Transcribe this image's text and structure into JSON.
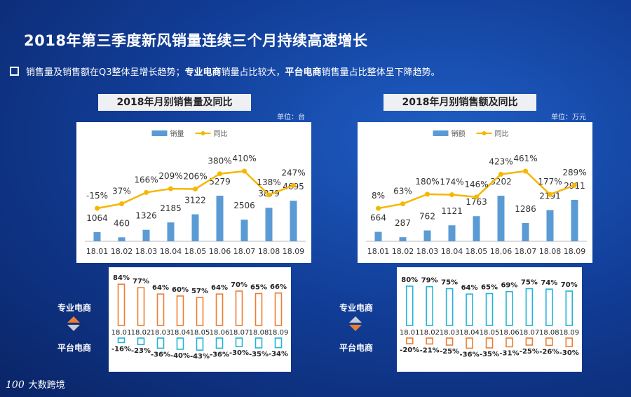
{
  "title": "2018年第三季度新风销量连续三个月持续高速增长",
  "subtitle": {
    "part1": "销售量及销售额在Q3整体呈增长趋势；",
    "bold1": "专业电商",
    "part2": "销量占比较大，",
    "bold2": "平台电商",
    "part3": "销售量占比整体呈下降趋势。"
  },
  "left_panel": {
    "header": "2018年月别销售量及同比",
    "unit": "单位：台"
  },
  "right_panel": {
    "header": "2018年月别销售额及同比",
    "unit": "单位：万元"
  },
  "side_labels": {
    "pro": "专业电商",
    "platform": "平台电商"
  },
  "logo": {
    "mark": "100",
    "text": "大数跨境"
  },
  "colors": {
    "bar": "#5b9bd5",
    "line": "#f5b700",
    "orange": "#ed7d31",
    "cyan": "#22b3d6"
  },
  "chart_data": [
    {
      "type": "bar+line",
      "categories": [
        "18.01",
        "18.02",
        "18.03",
        "18.04",
        "18.05",
        "18.06",
        "18.07",
        "18.08",
        "18.09"
      ],
      "series": [
        {
          "name": "销量",
          "values": [
            1064,
            460,
            1326,
            2185,
            3122,
            5279,
            2506,
            3879,
            4695
          ]
        },
        {
          "name": "同比",
          "values": [
            -15,
            37,
            166,
            209,
            206,
            380,
            410,
            138,
            247
          ],
          "labels": [
            "-15%",
            "37%",
            "166%",
            "209%",
            "206%",
            "380%",
            "410%",
            "138%",
            "247%"
          ]
        }
      ]
    },
    {
      "type": "bar+line",
      "categories": [
        "18.01",
        "18.02",
        "18.03",
        "18.04",
        "18.05",
        "18.06",
        "18.07",
        "18.08",
        "18.09"
      ],
      "series": [
        {
          "name": "销额",
          "values": [
            664,
            287,
            762,
            1121,
            1763,
            3202,
            1286,
            2191,
            2911
          ]
        },
        {
          "name": "同比",
          "values": [
            8,
            63,
            180,
            174,
            146,
            423,
            461,
            177,
            289
          ],
          "labels": [
            "8%",
            "63%",
            "180%",
            "174%",
            "146%",
            "423%",
            "461%",
            "177%",
            "289%"
          ]
        }
      ]
    },
    {
      "type": "bar",
      "categories": [
        "18.01",
        "18.02",
        "18.03",
        "18.04",
        "18.05",
        "18.06",
        "18.07",
        "18.08",
        "18.09"
      ],
      "series": [
        {
          "name": "专业电商",
          "values": [
            84,
            77,
            64,
            60,
            57,
            64,
            70,
            65,
            66
          ],
          "labels": [
            "84%",
            "77%",
            "64%",
            "60%",
            "57%",
            "64%",
            "70%",
            "65%",
            "66%"
          ]
        },
        {
          "name": "平台电商",
          "values": [
            -16,
            -23,
            -36,
            -40,
            -43,
            -36,
            -30,
            -35,
            -34
          ],
          "labels": [
            "-16%",
            "-23%",
            "-36%",
            "-40%",
            "-43%",
            "-36%",
            "-30%",
            "-35%",
            "-34%"
          ]
        }
      ]
    },
    {
      "type": "bar",
      "categories": [
        "18.01",
        "18.02",
        "18.03",
        "18.04",
        "18.05",
        "18.06",
        "18.07",
        "18.08",
        "18.09"
      ],
      "series": [
        {
          "name": "专业电商",
          "values": [
            80,
            79,
            75,
            64,
            65,
            69,
            75,
            74,
            70
          ],
          "labels": [
            "80%",
            "79%",
            "75%",
            "64%",
            "65%",
            "69%",
            "75%",
            "74%",
            "70%"
          ]
        },
        {
          "name": "平台电商",
          "values": [
            -20,
            -21,
            -25,
            -36,
            -35,
            -31,
            -25,
            -26,
            -30
          ],
          "labels": [
            "-20%",
            "-21%",
            "-25%",
            "-36%",
            "-35%",
            "-31%",
            "-25%",
            "-26%",
            "-30%"
          ]
        }
      ]
    }
  ]
}
